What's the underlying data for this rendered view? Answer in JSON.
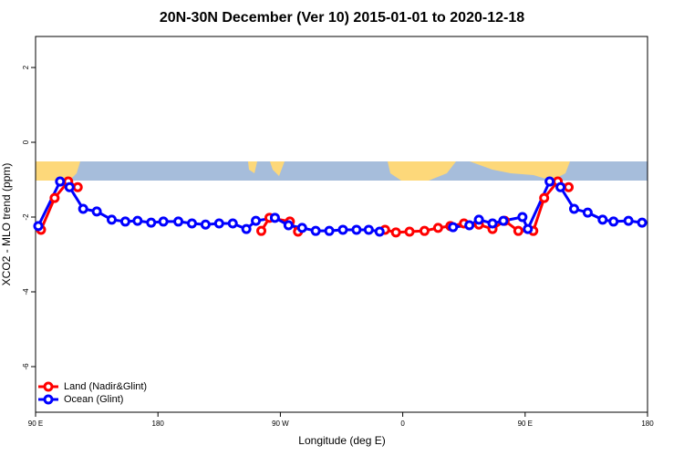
{
  "chart_data": {
    "type": "line",
    "title": "20N-30N December (Ver 10)   2015-01-01 to 2020-12-18",
    "x_label": "Longitude (deg E)",
    "y_label": "XCO2 - MLO trend (ppm)",
    "xlim": [
      90,
      540
    ],
    "xticks": [
      {
        "value": 90,
        "label": "90 E"
      },
      {
        "value": 180,
        "label": "180"
      },
      {
        "value": 270,
        "label": "90 W"
      },
      {
        "value": 360,
        "label": "0"
      },
      {
        "value": 450,
        "label": "90 E"
      },
      {
        "value": 540,
        "label": "180"
      }
    ],
    "ylim": [
      -7.22,
      2.83
    ],
    "yticks": [
      -6,
      -4,
      -2,
      0,
      2
    ],
    "legend": "bottom-left",
    "series": [
      {
        "name": "Land (Nadir&Glint)",
        "color": "#ff0000",
        "x": [
          94,
          104,
          114,
          121,
          null,
          256,
          262,
          277,
          283,
          null,
          347,
          355,
          365,
          376,
          386,
          395,
          405,
          416,
          426,
          435,
          445,
          456,
          464,
          474,
          482
        ],
        "values": [
          -2.34,
          -1.49,
          -1.05,
          -1.2,
          null,
          -2.37,
          -2.02,
          -2.12,
          -2.39,
          null,
          -2.34,
          -2.41,
          -2.39,
          -2.37,
          -2.29,
          -2.24,
          -2.17,
          -2.2,
          -2.32,
          -2.1,
          -2.37,
          -2.37,
          -1.49,
          -1.05,
          -1.2
        ]
      },
      {
        "name": "Ocean (Glint)",
        "color": "#0000ff",
        "x": [
          92,
          108,
          115,
          125,
          135,
          146,
          156,
          165,
          175,
          184,
          195,
          205,
          215,
          225,
          235,
          245,
          252,
          266,
          276,
          286,
          296,
          306,
          316,
          326,
          335,
          343,
          null,
          397,
          409,
          416,
          426,
          434,
          448,
          452,
          468,
          476,
          486,
          496,
          507,
          515,
          526,
          536
        ],
        "values": [
          -2.24,
          -1.05,
          -1.2,
          -1.78,
          -1.85,
          -2.07,
          -2.12,
          -2.1,
          -2.15,
          -2.12,
          -2.12,
          -2.17,
          -2.2,
          -2.17,
          -2.17,
          -2.32,
          -2.1,
          -2.02,
          -2.22,
          -2.29,
          -2.37,
          -2.37,
          -2.34,
          -2.34,
          -2.34,
          -2.39,
          null,
          -2.27,
          -2.22,
          -2.07,
          -2.17,
          -2.1,
          -2.0,
          -2.32,
          -1.05,
          -1.2,
          -1.78,
          -1.88,
          -2.07,
          -2.12,
          -2.1,
          -2.15
        ]
      }
    ]
  }
}
